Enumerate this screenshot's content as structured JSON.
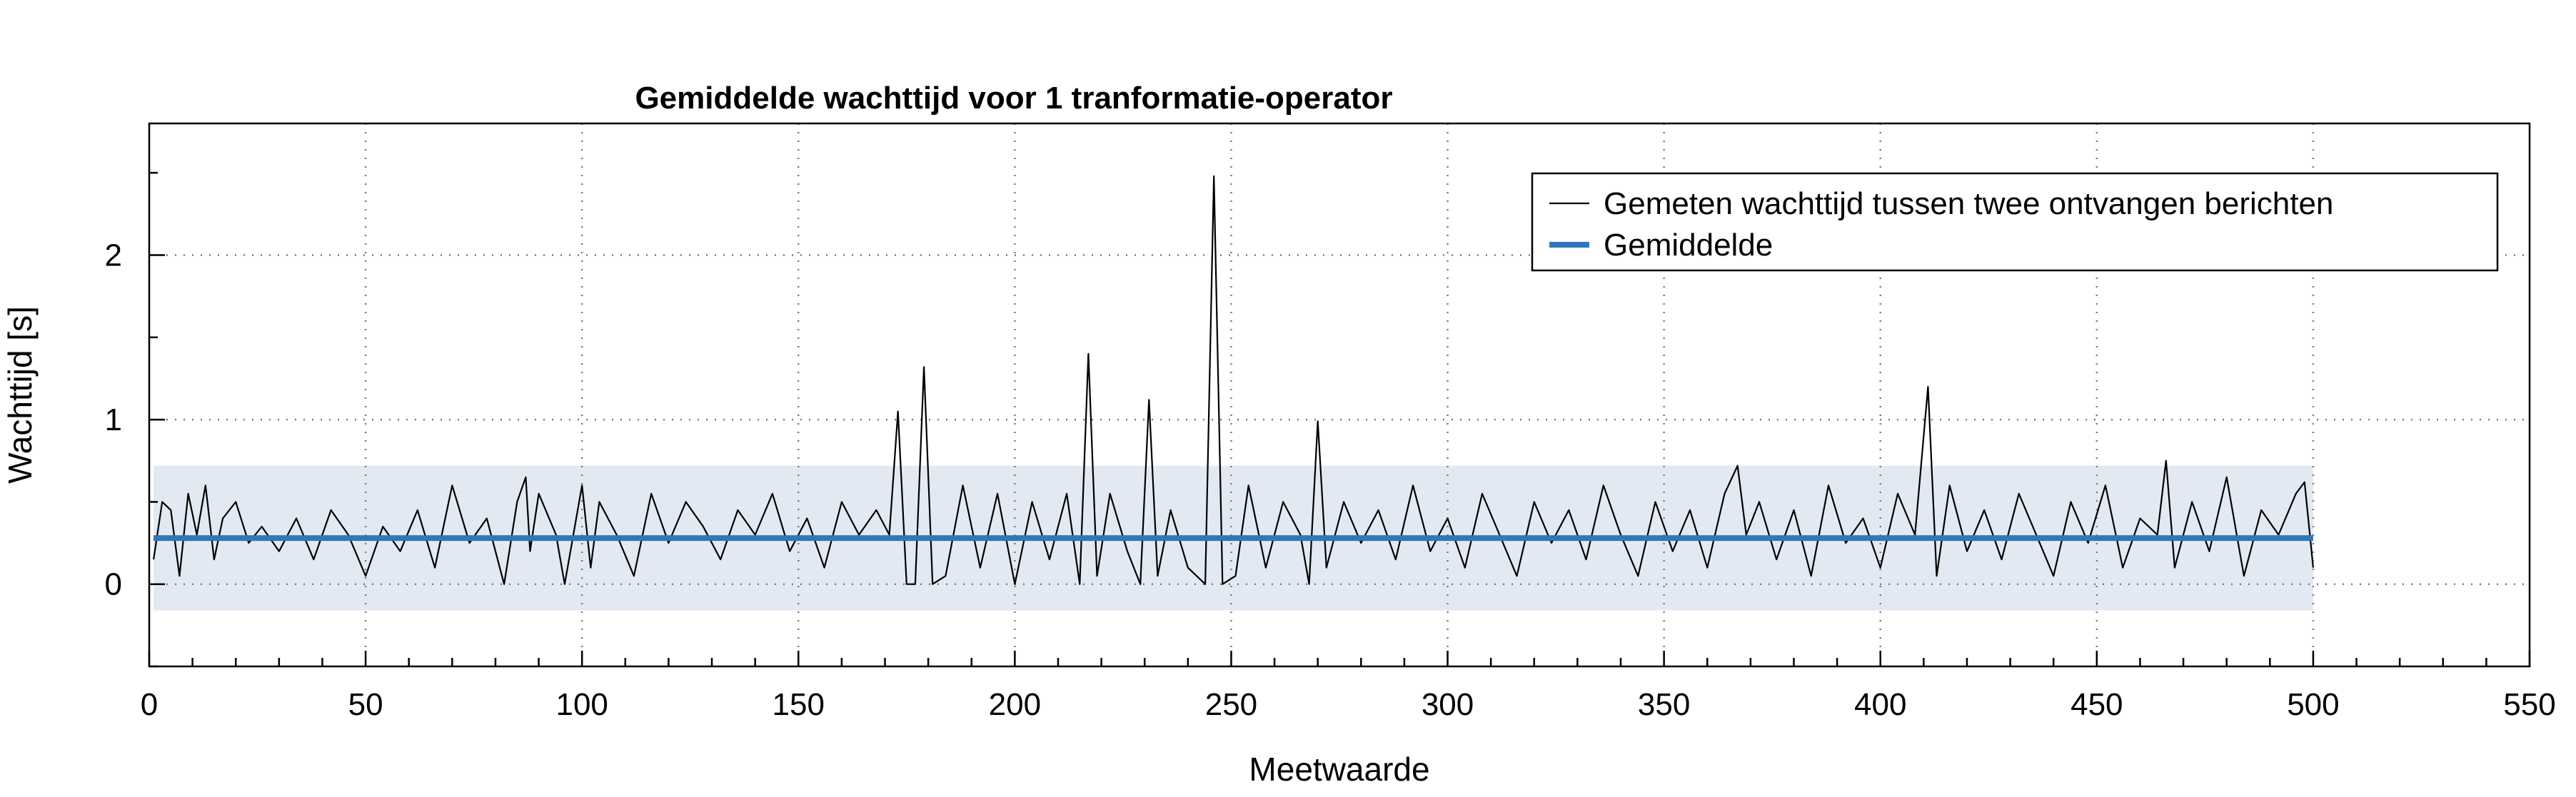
{
  "chart_data": {
    "type": "line",
    "title": "Gemiddelde wachttijd voor 1 tranformatie-operator",
    "xlabel": "Meetwaarde",
    "ylabel": "Wachttijd [s]",
    "xlim": [
      0,
      550
    ],
    "ylim": [
      -0.5,
      2.8
    ],
    "xticks": [
      0,
      50,
      100,
      150,
      200,
      250,
      300,
      350,
      400,
      450,
      500,
      550
    ],
    "yticks": [
      0,
      1,
      2
    ],
    "grid": true,
    "legend_position": "top-right",
    "series": [
      {
        "name": "Gemeten wachttijd tussen twee ontvangen berichten",
        "color": "#000000",
        "x": [
          1,
          3,
          5,
          7,
          9,
          11,
          13,
          15,
          17,
          20,
          23,
          26,
          30,
          34,
          38,
          42,
          46,
          50,
          54,
          58,
          62,
          66,
          70,
          74,
          78,
          82,
          85,
          87,
          88,
          90,
          94,
          96,
          100,
          102,
          104,
          108,
          112,
          116,
          120,
          124,
          128,
          132,
          136,
          140,
          144,
          148,
          152,
          156,
          160,
          164,
          168,
          171,
          173,
          175,
          177,
          179,
          181,
          184,
          188,
          192,
          196,
          200,
          204,
          208,
          212,
          215,
          217,
          219,
          222,
          226,
          229,
          231,
          233,
          236,
          240,
          244,
          246,
          248,
          251,
          254,
          258,
          262,
          266,
          268,
          270,
          272,
          276,
          280,
          284,
          288,
          292,
          296,
          300,
          304,
          308,
          312,
          316,
          320,
          324,
          328,
          332,
          336,
          340,
          344,
          348,
          352,
          356,
          360,
          364,
          367,
          369,
          372,
          376,
          380,
          384,
          388,
          392,
          396,
          400,
          404,
          408,
          411,
          413,
          416,
          420,
          424,
          428,
          432,
          436,
          440,
          444,
          448,
          452,
          456,
          460,
          464,
          466,
          468,
          472,
          476,
          480,
          484,
          488,
          492,
          496,
          498,
          500
        ],
        "y": [
          0.15,
          0.5,
          0.45,
          0.05,
          0.55,
          0.3,
          0.6,
          0.15,
          0.4,
          0.5,
          0.25,
          0.35,
          0.2,
          0.4,
          0.15,
          0.45,
          0.3,
          0.05,
          0.35,
          0.2,
          0.45,
          0.1,
          0.6,
          0.25,
          0.4,
          0.0,
          0.5,
          0.65,
          0.2,
          0.55,
          0.3,
          0.0,
          0.6,
          0.1,
          0.5,
          0.3,
          0.05,
          0.55,
          0.25,
          0.5,
          0.35,
          0.15,
          0.45,
          0.3,
          0.55,
          0.2,
          0.4,
          0.1,
          0.5,
          0.3,
          0.45,
          0.3,
          1.05,
          0.0,
          0.0,
          1.32,
          0.0,
          0.05,
          0.6,
          0.1,
          0.55,
          0.0,
          0.5,
          0.15,
          0.55,
          0.0,
          1.4,
          0.05,
          0.55,
          0.2,
          0.0,
          1.12,
          0.05,
          0.45,
          0.1,
          0.0,
          2.48,
          0.0,
          0.05,
          0.6,
          0.1,
          0.5,
          0.3,
          0.0,
          0.99,
          0.1,
          0.5,
          0.25,
          0.45,
          0.15,
          0.6,
          0.2,
          0.4,
          0.1,
          0.55,
          0.3,
          0.05,
          0.5,
          0.25,
          0.45,
          0.15,
          0.6,
          0.3,
          0.05,
          0.5,
          0.2,
          0.45,
          0.1,
          0.55,
          0.72,
          0.3,
          0.5,
          0.15,
          0.45,
          0.05,
          0.6,
          0.25,
          0.4,
          0.1,
          0.55,
          0.3,
          1.2,
          0.05,
          0.6,
          0.2,
          0.45,
          0.15,
          0.55,
          0.3,
          0.05,
          0.5,
          0.25,
          0.6,
          0.1,
          0.4,
          0.3,
          0.75,
          0.1,
          0.5,
          0.2,
          0.65,
          0.05,
          0.45,
          0.3,
          0.55,
          0.62,
          0.1
        ]
      },
      {
        "name": "Gemiddelde",
        "color": "#2e78b7",
        "x": [
          1,
          500
        ],
        "y": [
          0.28,
          0.28
        ]
      }
    ],
    "band": {
      "color": "#e3e9f3",
      "x": [
        1,
        500
      ],
      "y": [
        -0.16,
        0.72
      ]
    }
  }
}
